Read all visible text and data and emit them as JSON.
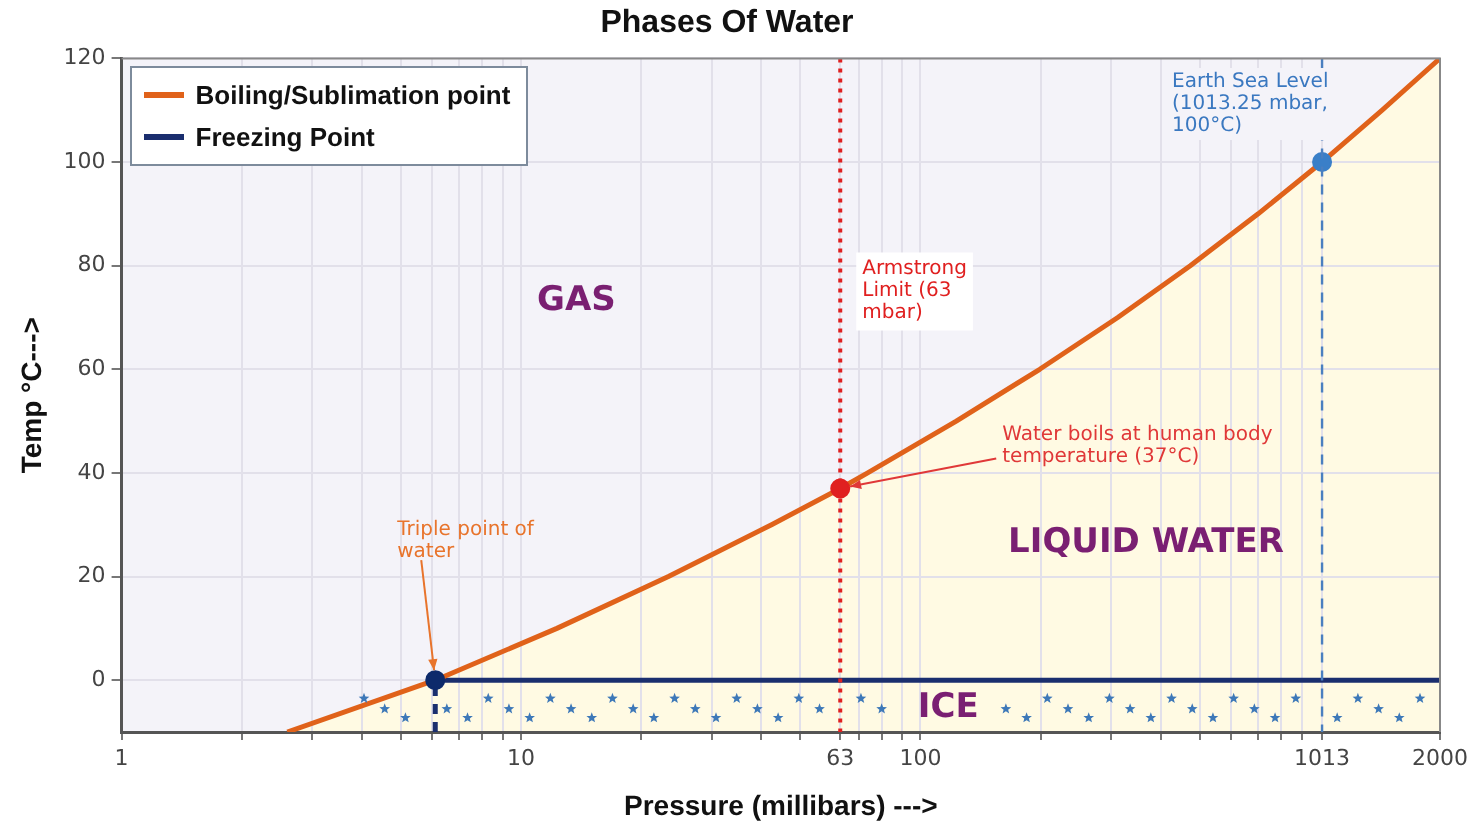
{
  "chart_data": {
    "type": "line",
    "title": "Phases Of Water",
    "xlabel": "Pressure (millibars) --->",
    "ylabel": "Temp °C--->",
    "xlim": [
      1,
      2000
    ],
    "xticks": [
      1,
      {
        "value": 2,
        "label": null
      },
      {
        "value": 3,
        "label": null
      },
      {
        "value": 4,
        "label": null
      },
      {
        "value": 5,
        "label": null
      },
      {
        "value": 6,
        "label": null
      },
      {
        "value": 7,
        "label": null
      },
      {
        "value": 8,
        "label": null
      },
      {
        "value": 9,
        "label": null
      },
      10,
      {
        "value": 20,
        "label": null
      },
      {
        "value": 30,
        "label": null
      },
      {
        "value": 40,
        "label": null
      },
      {
        "value": 50,
        "label": null
      },
      63,
      {
        "value": 70,
        "label": null
      },
      {
        "value": 80,
        "label": null
      },
      {
        "value": 90,
        "label": null
      },
      100,
      {
        "value": 200,
        "label": null
      },
      {
        "value": 300,
        "label": null
      },
      {
        "value": 400,
        "label": null
      },
      {
        "value": 500,
        "label": null
      },
      {
        "value": 600,
        "label": null
      },
      {
        "value": 700,
        "label": null
      },
      {
        "value": 800,
        "label": null
      },
      {
        "value": 900,
        "label": null
      },
      1013,
      2000
    ],
    "ylim": [
      -10,
      120
    ],
    "yticks": [
      0,
      20,
      40,
      60,
      80,
      100,
      120
    ],
    "log": "x",
    "grid": true,
    "legend": "top left",
    "series": [
      {
        "name": "Boiling/Sublimation point",
        "color": "#e0621a",
        "x": [
          2.6,
          6.1,
          12.3,
          23.4,
          42.4,
          63,
          73.8,
          123,
          199,
          312,
          474,
          701,
          1013.25,
          1433,
          2000
        ],
        "values": [
          -10,
          0,
          10,
          20,
          30,
          37,
          40,
          50,
          60,
          70,
          80,
          90,
          100,
          110,
          120
        ]
      },
      {
        "name": "Freezing Point",
        "color": "#1a2e6e",
        "x": [
          6.1,
          2000
        ],
        "values": [
          0,
          0
        ]
      },
      {
        "color": "#1a2e6e",
        "line_style": "dashed",
        "x": [
          6.1,
          6.1
        ],
        "values": [
          -10,
          0
        ]
      },
      {
        "type": "scatter",
        "marker": "circle",
        "x": [
          6.1,
          63,
          1013.25
        ],
        "values": [
          0,
          37,
          100
        ],
        "colors": [
          "#0d2a6b",
          "#e02020",
          "#3a7fc8"
        ]
      }
    ],
    "ref_lines": [
      {
        "axis": "x",
        "value": 63,
        "label": "Armstrong Limit (63 mbar)",
        "color": "#e02020",
        "line_style": "dotted"
      },
      {
        "axis": "x",
        "value": 1013.25,
        "color": "#4a7fc0",
        "line_style": "dashed"
      }
    ],
    "annotations": [
      {
        "text": "Triple point of water",
        "x": 6.1,
        "y": 0
      },
      {
        "text": "Water boils at human body temperature (37°C)",
        "x": 63,
        "y": 37
      },
      {
        "text": "Earth Sea Level (1013.25 mbar, 100°C)",
        "x": 1013.25,
        "y": 100
      },
      "GAS",
      "LIQUID WATER",
      "ICE"
    ]
  }
}
